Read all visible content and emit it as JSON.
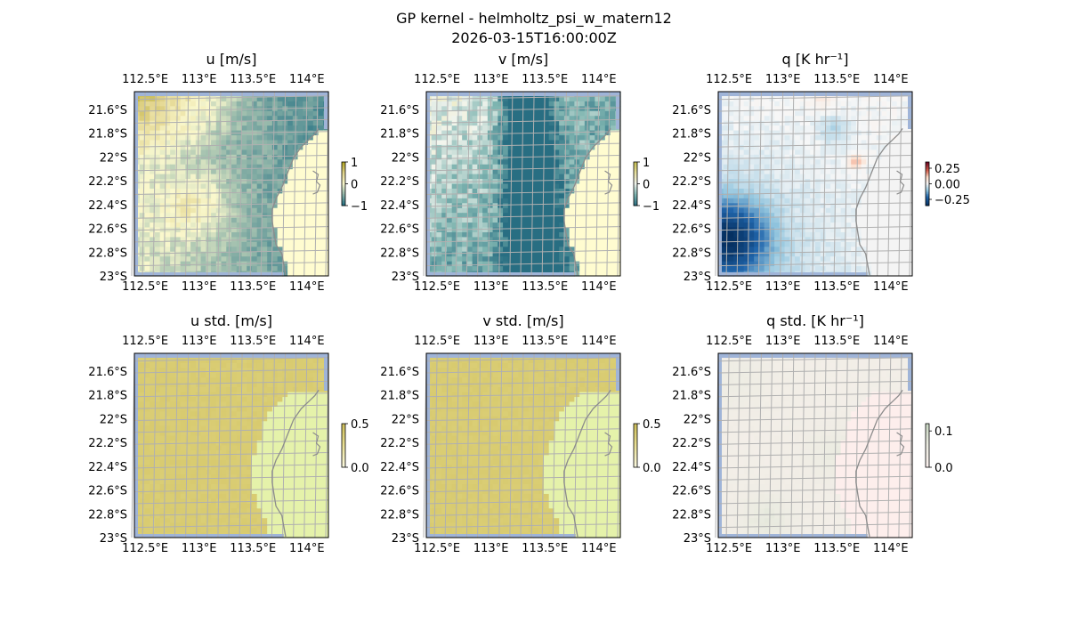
{
  "figure": {
    "title": "GP kernel - helmholtz_psi_w_matern12",
    "subtitle": "2026-03-15T16:00:00Z"
  },
  "colors": {
    "frame": "#000000",
    "grid": "#b0b0b0",
    "coast": "#8c8c8c",
    "ocean_edge": "#9fb4d8",
    "land_fill": "#fefdcc"
  },
  "chart_data": [
    {
      "type": "heatmap",
      "title": "u [m/s]",
      "x_tick_labels": [
        "112.5°E",
        "113°E",
        "113.5°E",
        "114°E"
      ],
      "x_ticks": [
        112.5,
        113.0,
        113.5,
        114.0
      ],
      "y_tick_labels": [
        "21.6°S",
        "21.8°S",
        "22°S",
        "22.2°S",
        "22.4°S",
        "22.6°S",
        "22.8°S",
        "23°S"
      ],
      "y_ticks": [
        -21.6,
        -21.8,
        -22.0,
        -22.2,
        -22.4,
        -22.6,
        -22.8,
        -23.0
      ],
      "xlim": [
        112.4,
        114.2
      ],
      "ylim": [
        -23.0,
        -21.45
      ],
      "grid": true,
      "colorbar": {
        "ticks": [
          1,
          0,
          -1
        ],
        "labels": [
          "1",
          "0",
          "−1"
        ],
        "range": [
          -1,
          1
        ]
      },
      "colormap": "yellow-green diverging",
      "field": "u"
    },
    {
      "type": "heatmap",
      "title": "v [m/s]",
      "x_tick_labels": [
        "112.5°E",
        "113°E",
        "113.5°E",
        "114°E"
      ],
      "x_ticks": [
        112.5,
        113.0,
        113.5,
        114.0
      ],
      "y_tick_labels": [
        "21.6°S",
        "21.8°S",
        "22°S",
        "22.2°S",
        "22.4°S",
        "22.6°S",
        "22.8°S",
        "23°S"
      ],
      "y_ticks": [
        -21.6,
        -21.8,
        -22.0,
        -22.2,
        -22.4,
        -22.6,
        -22.8,
        -23.0
      ],
      "xlim": [
        112.4,
        114.2
      ],
      "ylim": [
        -23.0,
        -21.45
      ],
      "grid": true,
      "colorbar": {
        "ticks": [
          1,
          0,
          -1
        ],
        "labels": [
          "1",
          "0",
          "−1"
        ],
        "range": [
          -1,
          1
        ]
      },
      "colormap": "yellow-teal diverging",
      "field": "v"
    },
    {
      "type": "heatmap",
      "title": "q [K hr⁻¹]",
      "x_tick_labels": [
        "112.5°E",
        "113°E",
        "113.5°E",
        "114°E"
      ],
      "x_ticks": [
        112.5,
        113.0,
        113.5,
        114.0
      ],
      "y_tick_labels": [
        "21.6°S",
        "21.8°S",
        "22°S",
        "22.2°S",
        "22.4°S",
        "22.6°S",
        "22.8°S",
        "23°S"
      ],
      "y_ticks": [
        -21.6,
        -21.8,
        -22.0,
        -22.2,
        -22.4,
        -22.6,
        -22.8,
        -23.0
      ],
      "xlim": [
        112.4,
        114.2
      ],
      "ylim": [
        -23.0,
        -21.45
      ],
      "grid": true,
      "colorbar": {
        "ticks": [
          0.25,
          0.0,
          -0.25
        ],
        "labels": [
          "0.25",
          "0.00",
          "−0.25"
        ],
        "range": [
          -0.35,
          0.35
        ]
      },
      "colormap": "RdBu_r",
      "field": "q"
    },
    {
      "type": "heatmap",
      "title": "u std. [m/s]",
      "x_tick_labels": [
        "112.5°E",
        "113°E",
        "113.5°E",
        "114°E"
      ],
      "x_ticks": [
        112.5,
        113.0,
        113.5,
        114.0
      ],
      "y_tick_labels": [
        "21.6°S",
        "21.8°S",
        "22°S",
        "22.2°S",
        "22.4°S",
        "22.6°S",
        "22.8°S",
        "23°S"
      ],
      "y_ticks": [
        -21.6,
        -21.8,
        -22.0,
        -22.2,
        -22.4,
        -22.6,
        -22.8,
        -23.0
      ],
      "xlim": [
        112.4,
        114.2
      ],
      "ylim": [
        -23.0,
        -21.45
      ],
      "grid": true,
      "colorbar": {
        "ticks": [
          0.5,
          0.0
        ],
        "labels": [
          "0.5",
          "0.0"
        ],
        "range": [
          0,
          0.5
        ]
      },
      "colormap": "yellow sequential",
      "field": "ustd"
    },
    {
      "type": "heatmap",
      "title": "v std. [m/s]",
      "x_tick_labels": [
        "112.5°E",
        "113°E",
        "113.5°E",
        "114°E"
      ],
      "x_ticks": [
        112.5,
        113.0,
        113.5,
        114.0
      ],
      "y_tick_labels": [
        "21.6°S",
        "21.8°S",
        "22°S",
        "22.2°S",
        "22.4°S",
        "22.6°S",
        "22.8°S",
        "23°S"
      ],
      "y_ticks": [
        -21.6,
        -21.8,
        -22.0,
        -22.2,
        -22.4,
        -22.6,
        -22.8,
        -23.0
      ],
      "xlim": [
        112.4,
        114.2
      ],
      "ylim": [
        -23.0,
        -21.45
      ],
      "grid": true,
      "colorbar": {
        "ticks": [
          0.5,
          0.0
        ],
        "labels": [
          "0.5",
          "0.0"
        ],
        "range": [
          0,
          0.5
        ]
      },
      "colormap": "yellow sequential",
      "field": "vstd"
    },
    {
      "type": "heatmap",
      "title": "q std. [K hr⁻¹]",
      "x_tick_labels": [
        "112.5°E",
        "113°E",
        "113.5°E",
        "114°E"
      ],
      "x_ticks": [
        112.5,
        113.0,
        113.5,
        114.0
      ],
      "y_tick_labels": [
        "21.6°S",
        "21.8°S",
        "22°S",
        "22.2°S",
        "22.4°S",
        "22.6°S",
        "22.8°S",
        "23°S"
      ],
      "y_ticks": [
        -21.6,
        -21.8,
        -22.0,
        -22.2,
        -22.4,
        -22.6,
        -22.8,
        -23.0
      ],
      "xlim": [
        112.4,
        114.2
      ],
      "ylim": [
        -23.0,
        -21.45
      ],
      "grid": true,
      "colorbar": {
        "ticks": [
          0.1,
          0.0
        ],
        "labels": [
          "0.1",
          "0.0"
        ],
        "range": [
          0,
          0.12
        ]
      },
      "colormap": "green-pink sequential",
      "field": "qstd"
    }
  ]
}
